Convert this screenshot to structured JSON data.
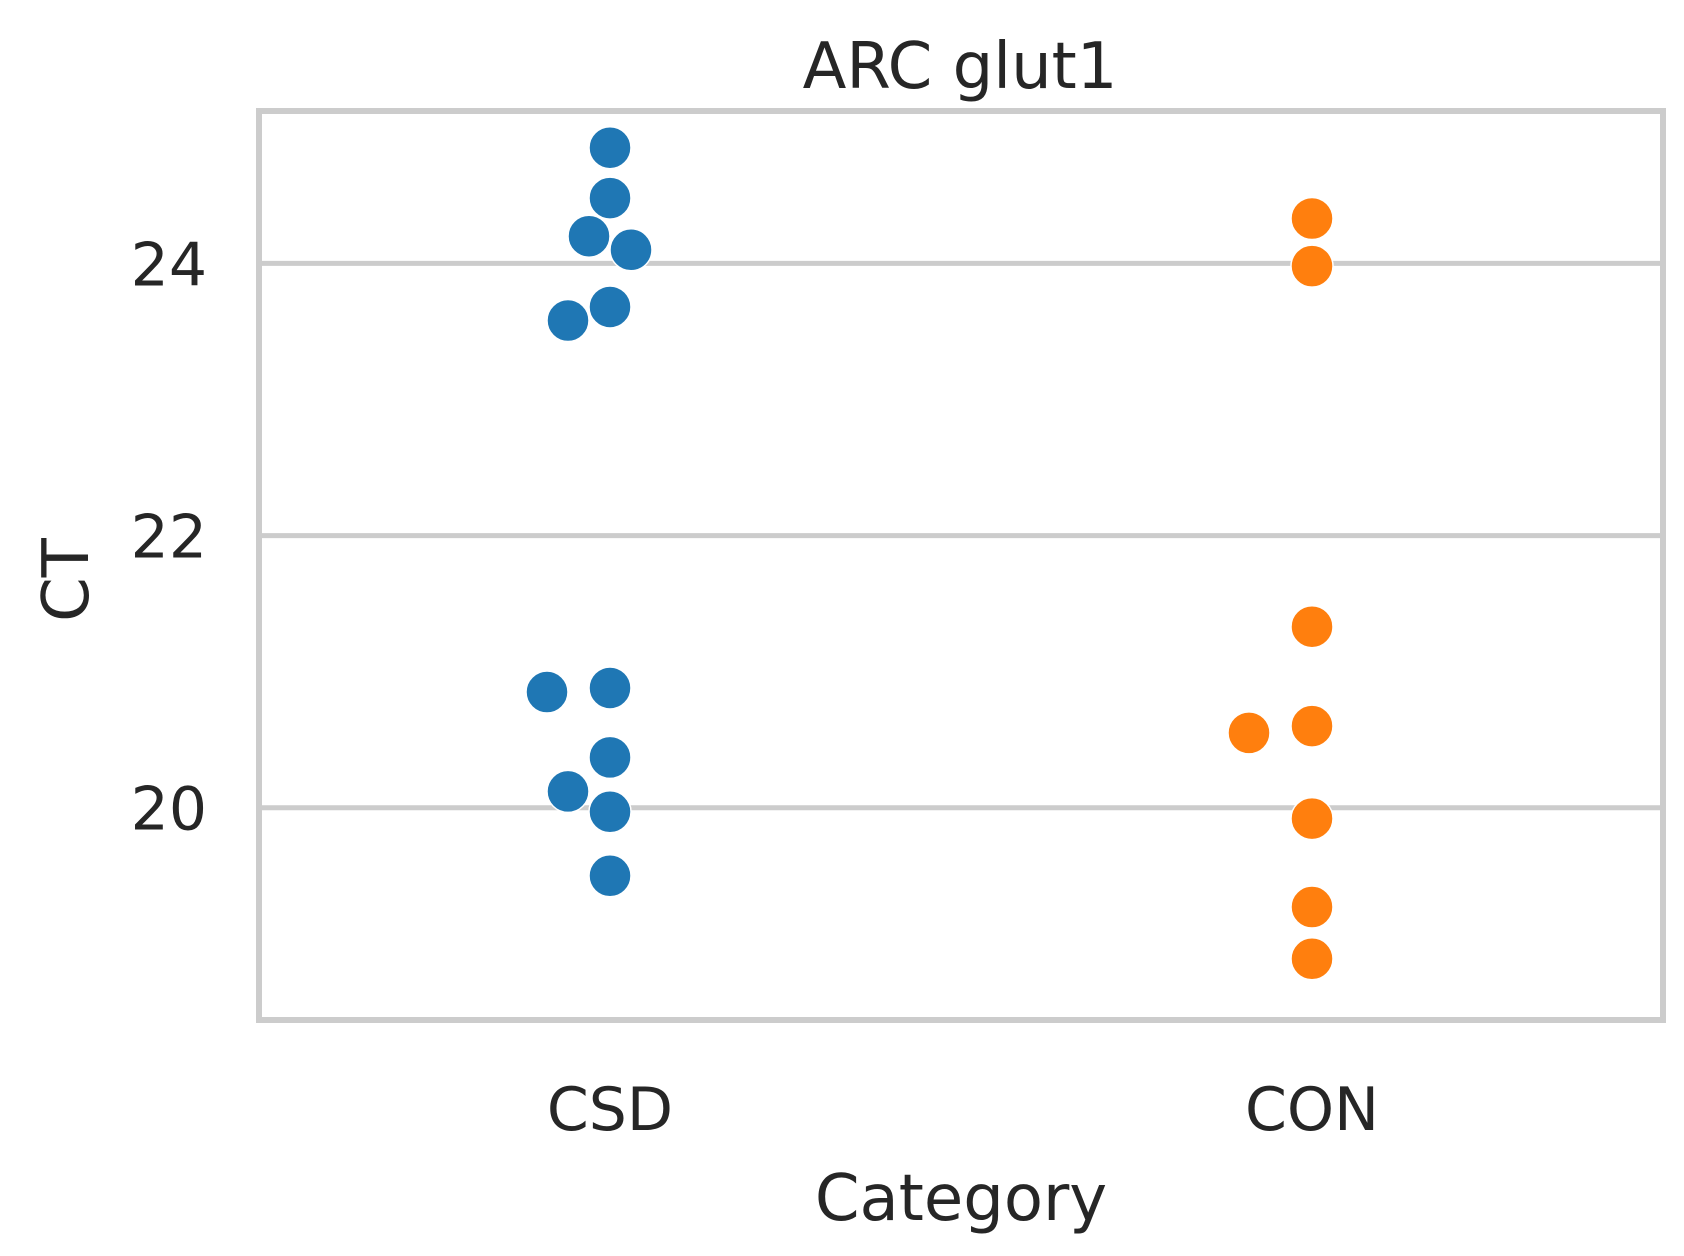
{
  "chart_data": {
    "type": "scatter",
    "subtype": "swarm",
    "title": "ARC glut1",
    "xlabel": "Category",
    "ylabel": "CT",
    "categories": [
      "CSD",
      "CON"
    ],
    "ylim": [
      18.44,
      25.12
    ],
    "yticks": [
      20,
      22,
      24
    ],
    "grid": "horizontal",
    "series": [
      {
        "category": "CSD",
        "color": "#1f77b4",
        "values": [
          24.85,
          24.48,
          24.2,
          24.1,
          23.68,
          23.58,
          20.88,
          20.85,
          20.37,
          20.12,
          19.97,
          19.5
        ]
      },
      {
        "category": "CON",
        "color": "#ff7f0e",
        "values": [
          24.33,
          23.98,
          21.33,
          20.6,
          20.55,
          19.92,
          19.27,
          18.89
        ]
      }
    ]
  }
}
